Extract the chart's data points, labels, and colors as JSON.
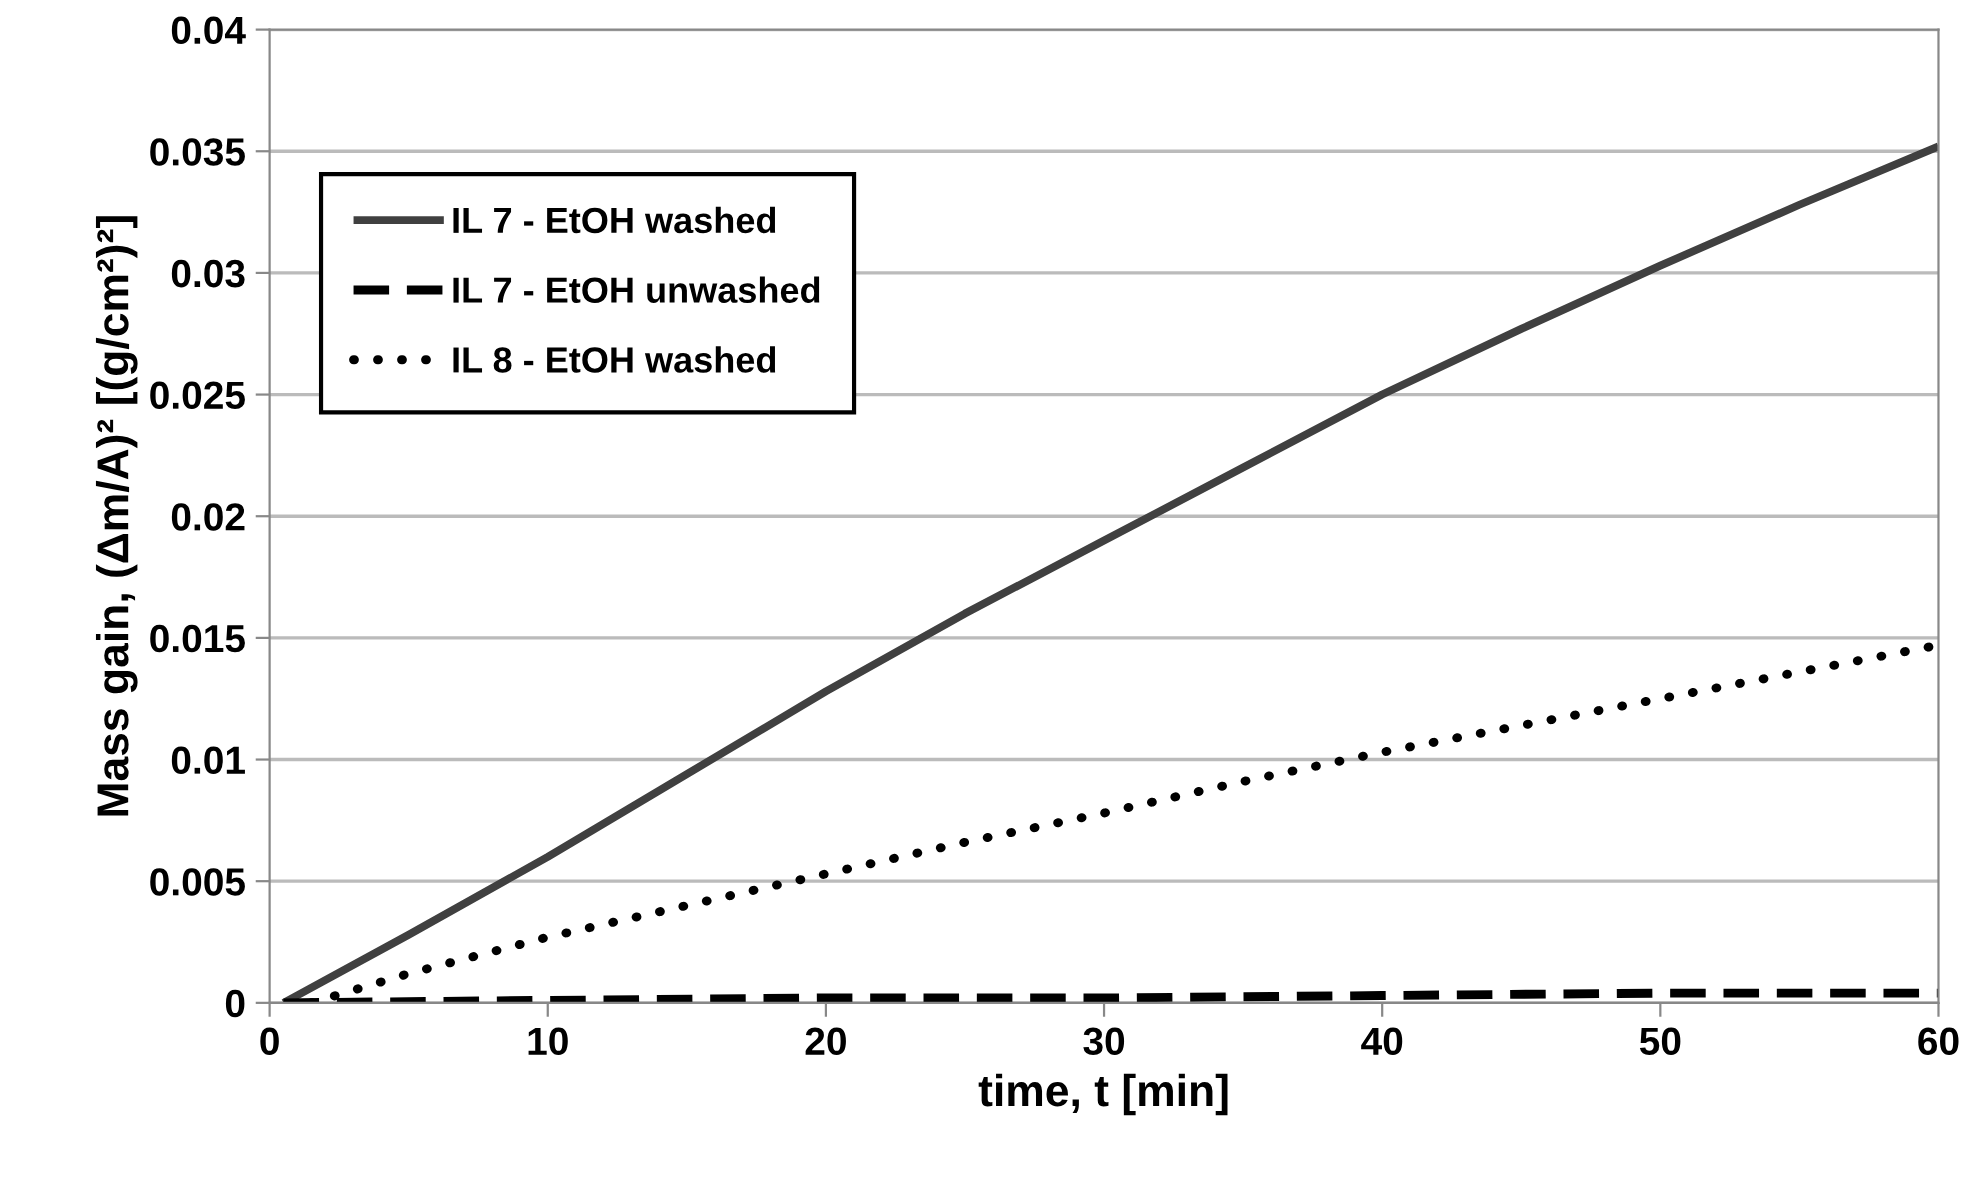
{
  "chart_data": {
    "type": "line",
    "xlabel": "time, t [min]",
    "ylabel": "Mass gain, (Δm/A)² [(g/cm²)²]",
    "xlim": [
      0,
      60
    ],
    "xticks": [
      0,
      10,
      20,
      30,
      40,
      50,
      60
    ],
    "ylim": [
      0,
      0.04
    ],
    "yticks": [
      0,
      0.005,
      0.01,
      0.015,
      0.02,
      0.025,
      0.03,
      0.035,
      0.04
    ],
    "grid": "y",
    "legend": "top left",
    "marker": "none",
    "series": [
      {
        "name": "IL 7 - EtOH washed",
        "color": "#404040",
        "line_style": "solid",
        "x": [
          0.5,
          5,
          10,
          15,
          20,
          25,
          30,
          35,
          40,
          45,
          50,
          55,
          60
        ],
        "values": [
          0,
          0.0028,
          0.006,
          0.0094,
          0.0128,
          0.016,
          0.019,
          0.022,
          0.025,
          0.0277,
          0.0303,
          0.0328,
          0.0352
        ]
      },
      {
        "name": "IL 7 - EtOH unwashed",
        "color": "#000000",
        "line_style": "dashed",
        "x": [
          0.5,
          10,
          20,
          30,
          40,
          50,
          60
        ],
        "values": [
          0,
          0.0001,
          0.0002,
          0.0002,
          0.0003,
          0.0004,
          0.0004
        ]
      },
      {
        "name": "IL 8 - EtOH washed",
        "color": "#000000",
        "line_style": "dotted",
        "x": [
          1.5,
          5,
          10,
          15,
          20,
          25,
          30,
          35,
          40,
          45,
          50,
          55,
          60
        ],
        "values": [
          0,
          0.0012,
          0.0027,
          0.004,
          0.0053,
          0.0066,
          0.0078,
          0.0091,
          0.0103,
          0.0114,
          0.0125,
          0.0136,
          0.0147
        ]
      }
    ]
  }
}
